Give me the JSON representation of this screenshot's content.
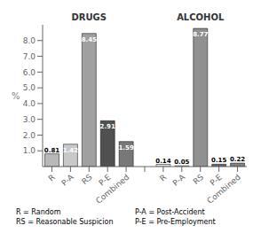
{
  "chart_data": {
    "type": "bar",
    "categories": [
      "R",
      "P-A",
      "RS",
      "P-E",
      "Combined",
      null,
      "R",
      "P-A",
      "RS",
      "P-E",
      "Combined"
    ],
    "values": [
      0.81,
      1.42,
      8.45,
      2.91,
      1.59,
      null,
      0.14,
      0.05,
      8.77,
      0.15,
      0.22
    ],
    "colors": [
      "#b8b8b8",
      "#c8c8c8",
      "#a0a0a0",
      "#505050",
      "#787878",
      null,
      "#e8e8e8",
      "#c0c0c0",
      "#909090",
      "#686868",
      "#808080"
    ],
    "ylabel": "%",
    "ylim": [
      0,
      9.0
    ],
    "yticks": [
      {
        "value": 1.0,
        "label": "1.0"
      },
      {
        "value": 2.0,
        "label": "2.0"
      },
      {
        "value": 3.0,
        "label": "3.0"
      },
      {
        "value": 4.0,
        "label": "4.0"
      },
      {
        "value": 5.0,
        "label": "5.0"
      },
      {
        "value": 6.0,
        "label": "6.0"
      },
      {
        "value": 7.0,
        "label": "7.0"
      },
      {
        "value": 8.0,
        "label": "8.0"
      }
    ],
    "data_labels": true,
    "grid": false,
    "annotations": [
      "DRUGS",
      "ALCOHOL",
      "R = Random",
      "RS = Reasonable Suspicion",
      "P-A = Post-Accident",
      "P-E = Pre-Employment"
    ]
  }
}
